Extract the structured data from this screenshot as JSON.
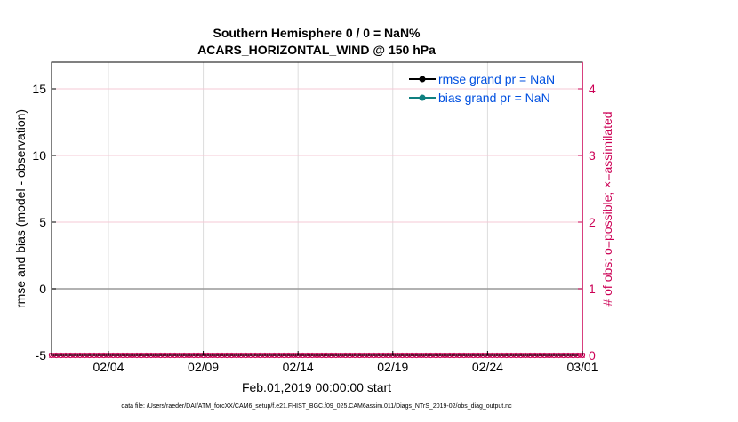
{
  "chart_data": {
    "type": "line",
    "title_line1": "Southern Hemisphere 0 / 0 = NaN%",
    "title_line2": "ACARS_HORIZONTAL_WIND @ 150 hPa",
    "xlabel": "Feb.01,2019 00:00:00 start",
    "ylabel_left": "rmse and bias (model - observation)",
    "ylabel_right": "# of obs: o=possible; ×=assimilated",
    "footer": "data file: /Users/raeder/DAI/ATM_forcXX/CAM6_setup/f.e21.FHIST_BGC.f09_025.CAM6assim.011/Diags_NTrS_2019-02/obs_diag_output.nc",
    "x_start_day": 0,
    "x_end_day": 28,
    "x_ticks": [
      {
        "label": "02/04",
        "day": 3
      },
      {
        "label": "02/09",
        "day": 8
      },
      {
        "label": "02/14",
        "day": 13
      },
      {
        "label": "02/19",
        "day": 18
      },
      {
        "label": "02/24",
        "day": 23
      },
      {
        "label": "03/01",
        "day": 28
      }
    ],
    "ylim_left": [
      -5,
      17
    ],
    "left_ticks": [
      -5,
      0,
      5,
      10,
      15
    ],
    "ylim_right": [
      0,
      4.4
    ],
    "right_ticks": [
      0,
      1,
      2,
      3,
      4
    ],
    "grid": true,
    "legend_placement": "top-right",
    "legend": [
      {
        "label": "rmse grand pr = NaN",
        "color": "#000000"
      },
      {
        "label": "bias grand pr = NaN",
        "color": "#0f8080"
      }
    ],
    "zero_line": 0,
    "obs_counts": {
      "possible": 0,
      "assimilated": 0,
      "interval_days": 0.25
    },
    "colors": {
      "right_axis": "#cc0055",
      "legend_text": "#0050e0",
      "zero_line": "#999999",
      "grid": "#dddddd"
    }
  }
}
